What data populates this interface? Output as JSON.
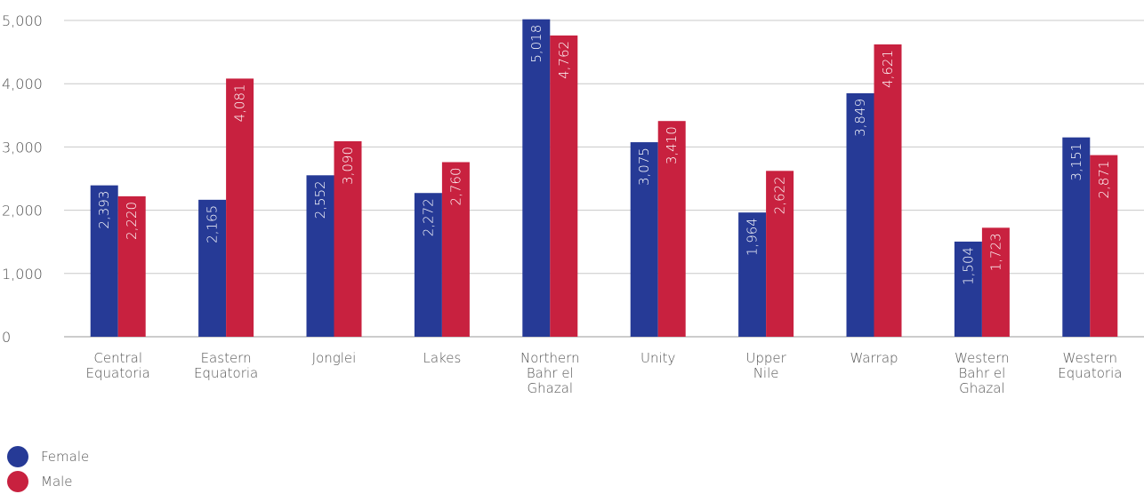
{
  "chart_data": {
    "type": "bar",
    "categories": [
      [
        "Central",
        "Equatoria"
      ],
      [
        "Eastern",
        "Equatoria"
      ],
      [
        "Jonglei"
      ],
      [
        "Lakes"
      ],
      [
        "Northern",
        "Bahr el",
        "Ghazal"
      ],
      [
        "Unity"
      ],
      [
        "Upper",
        "Nile"
      ],
      [
        "Warrap"
      ],
      [
        "Western",
        "Bahr el",
        "Ghazal"
      ],
      [
        "Western",
        "Equatoria"
      ]
    ],
    "series": [
      {
        "name": "Female",
        "color": "#263a96",
        "values": [
          2393,
          2165,
          2552,
          2272,
          5018,
          3075,
          1964,
          3849,
          1504,
          3151
        ]
      },
      {
        "name": "Male",
        "color": "#c8213f",
        "values": [
          2220,
          4081,
          3090,
          2760,
          4762,
          3410,
          2622,
          4621,
          1723,
          2871
        ]
      }
    ],
    "yticks": [
      "0",
      "1,000",
      "2,000",
      "3,000",
      "4,000",
      "5,000"
    ],
    "ytick_values": [
      0,
      1000,
      2000,
      3000,
      4000,
      5000
    ],
    "ylim": [
      0,
      5000
    ],
    "grid": true,
    "legend_position": "bottom-left"
  }
}
